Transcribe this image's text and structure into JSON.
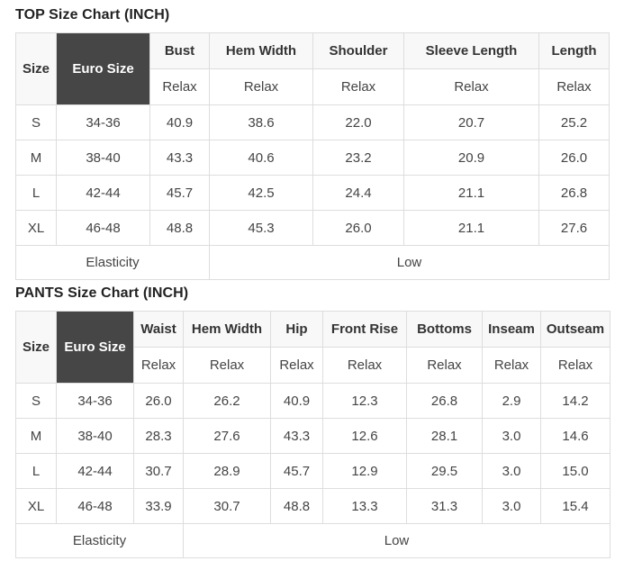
{
  "colors": {
    "euro_header_bg": "#464646",
    "euro_header_text": "#ffffff",
    "header_bg": "#f8f8f8",
    "border": "#dddddd"
  },
  "top_chart": {
    "title": "TOP Size Chart (INCH)",
    "size_header": "Size",
    "euro_header": "Euro Size",
    "columns": [
      {
        "label": "Bust",
        "fit": "Relax"
      },
      {
        "label": "Hem Width",
        "fit": "Relax"
      },
      {
        "label": "Shoulder",
        "fit": "Relax"
      },
      {
        "label": "Sleeve Length",
        "fit": "Relax"
      },
      {
        "label": "Length",
        "fit": "Relax"
      }
    ],
    "rows": [
      {
        "size": "S",
        "euro": "34-36",
        "values": [
          "40.9",
          "38.6",
          "22.0",
          "20.7",
          "25.2"
        ]
      },
      {
        "size": "M",
        "euro": "38-40",
        "values": [
          "43.3",
          "40.6",
          "23.2",
          "20.9",
          "26.0"
        ]
      },
      {
        "size": "L",
        "euro": "42-44",
        "values": [
          "45.7",
          "42.5",
          "24.4",
          "21.1",
          "26.8"
        ]
      },
      {
        "size": "XL",
        "euro": "46-48",
        "values": [
          "48.8",
          "45.3",
          "26.0",
          "21.1",
          "27.6"
        ]
      }
    ],
    "elasticity_label": "Elasticity",
    "elasticity_value": "Low"
  },
  "pants_chart": {
    "title": "PANTS Size Chart (INCH)",
    "size_header": "Size",
    "euro_header": "Euro Size",
    "columns": [
      {
        "label": "Waist",
        "fit": "Relax"
      },
      {
        "label": "Hem Width",
        "fit": "Relax"
      },
      {
        "label": "Hip",
        "fit": "Relax"
      },
      {
        "label": "Front Rise",
        "fit": "Relax"
      },
      {
        "label": "Bottoms",
        "fit": "Relax"
      },
      {
        "label": "Inseam",
        "fit": "Relax"
      },
      {
        "label": "Outseam",
        "fit": "Relax"
      }
    ],
    "rows": [
      {
        "size": "S",
        "euro": "34-36",
        "values": [
          "26.0",
          "26.2",
          "40.9",
          "12.3",
          "26.8",
          "2.9",
          "14.2"
        ]
      },
      {
        "size": "M",
        "euro": "38-40",
        "values": [
          "28.3",
          "27.6",
          "43.3",
          "12.6",
          "28.1",
          "3.0",
          "14.6"
        ]
      },
      {
        "size": "L",
        "euro": "42-44",
        "values": [
          "30.7",
          "28.9",
          "45.7",
          "12.9",
          "29.5",
          "3.0",
          "15.0"
        ]
      },
      {
        "size": "XL",
        "euro": "46-48",
        "values": [
          "33.9",
          "30.7",
          "48.8",
          "13.3",
          "31.3",
          "3.0",
          "15.4"
        ]
      }
    ],
    "elasticity_label": "Elasticity",
    "elasticity_value": "Low"
  }
}
